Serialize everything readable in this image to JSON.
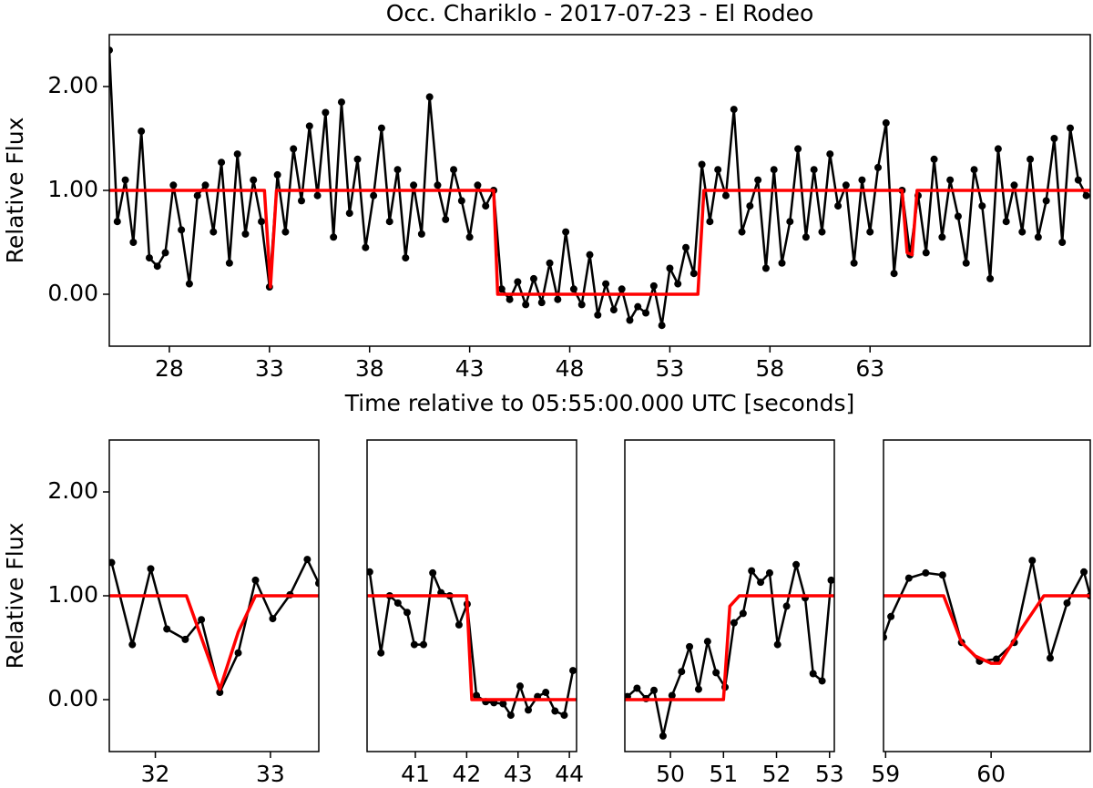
{
  "chart_data": [
    {
      "type": "line",
      "title": "Occ. Chariklo - 2017-07-23 - El Rodeo",
      "xlabel": "Time relative to 05:55:00.000 UTC [seconds]",
      "ylabel": "Relative Flux",
      "xlim": [
        25,
        74
      ],
      "ylim": [
        -0.5,
        2.5
      ],
      "xticks": [
        28,
        33,
        38,
        43,
        48,
        53,
        58,
        63
      ],
      "yticks": [
        {
          "value": 0,
          "label": "0.00"
        },
        {
          "value": 1,
          "label": "1.00"
        },
        {
          "value": 2,
          "label": "2.00"
        }
      ],
      "series": [
        {
          "color": "#000000",
          "markers": true,
          "x": [
            25.0,
            25.4,
            25.8,
            26.2,
            26.6,
            27.0,
            27.4,
            27.8,
            28.2,
            28.6,
            29.0,
            29.4,
            29.8,
            30.2,
            30.6,
            31.0,
            31.4,
            31.8,
            32.2,
            32.6,
            33.0,
            33.4,
            33.8,
            34.2,
            34.6,
            35.0,
            35.4,
            35.8,
            36.2,
            36.6,
            37.0,
            37.4,
            37.8,
            38.2,
            38.6,
            39.0,
            39.4,
            39.8,
            40.2,
            40.6,
            41.0,
            41.4,
            41.8,
            42.2,
            42.6,
            43.0,
            43.4,
            43.8,
            44.2,
            44.6,
            45.0,
            45.4,
            45.8,
            46.2,
            46.6,
            47.0,
            47.4,
            47.8,
            48.2,
            48.6,
            49.0,
            49.4,
            49.8,
            50.2,
            50.6,
            51.0,
            51.4,
            51.8,
            52.2,
            52.6,
            53.0,
            53.4,
            53.8,
            54.2,
            54.6,
            55.0,
            55.4,
            55.8,
            56.2,
            56.6,
            57.0,
            57.4,
            57.8,
            58.2,
            58.6,
            59.0,
            59.4,
            59.8,
            60.2,
            60.6,
            61.0,
            61.4,
            61.8,
            62.2,
            62.6,
            63.0,
            63.4,
            63.8,
            64.2,
            64.6,
            65.0,
            65.4,
            65.8,
            66.2,
            66.6,
            67.0,
            67.4,
            67.8,
            68.2,
            68.6,
            69.0,
            69.4,
            69.8,
            70.2,
            70.6,
            71.0,
            71.4,
            71.8,
            72.2,
            72.6,
            73.0,
            73.4,
            73.8
          ],
          "values": [
            2.35,
            0.7,
            1.1,
            0.5,
            1.57,
            0.35,
            0.27,
            0.4,
            1.05,
            0.62,
            0.1,
            0.95,
            1.05,
            0.6,
            1.27,
            0.3,
            1.35,
            0.58,
            1.1,
            0.7,
            0.07,
            1.15,
            0.6,
            1.4,
            0.9,
            1.62,
            0.95,
            1.75,
            0.55,
            1.85,
            0.78,
            1.3,
            0.45,
            0.95,
            1.6,
            0.7,
            1.2,
            0.35,
            1.05,
            0.58,
            1.9,
            1.05,
            0.72,
            1.2,
            0.9,
            0.55,
            1.05,
            0.85,
            1.0,
            0.05,
            -0.05,
            0.12,
            -0.1,
            0.15,
            -0.08,
            0.3,
            -0.05,
            0.6,
            0.05,
            -0.1,
            0.38,
            -0.2,
            0.1,
            -0.15,
            0.05,
            -0.25,
            -0.12,
            -0.18,
            0.08,
            -0.3,
            0.25,
            0.1,
            0.45,
            0.2,
            1.25,
            0.7,
            1.2,
            0.95,
            1.78,
            0.6,
            0.85,
            1.1,
            0.25,
            1.2,
            0.3,
            0.7,
            1.4,
            0.55,
            1.2,
            0.6,
            1.35,
            0.85,
            1.05,
            0.3,
            1.1,
            0.6,
            1.22,
            1.65,
            0.2,
            1.0,
            0.38,
            0.95,
            0.4,
            1.3,
            0.55,
            1.1,
            0.75,
            0.3,
            1.2,
            0.85,
            0.15,
            1.4,
            0.7,
            1.05,
            0.6,
            1.3,
            0.55,
            0.9,
            1.5,
            0.5,
            1.6,
            1.1,
            0.95
          ]
        },
        {
          "color": "#ff0000",
          "markers": false,
          "x": [
            25,
            32.75,
            33.05,
            33.35,
            44.2,
            44.4,
            54.4,
            54.7,
            64.6,
            64.85,
            65.1,
            65.35,
            74
          ],
          "values": [
            1,
            1,
            0.07,
            1,
            1,
            0,
            0,
            1,
            1,
            0.4,
            0.38,
            1,
            1
          ]
        }
      ]
    },
    {
      "type": "line",
      "ylabel": "Relative Flux",
      "xlim": [
        31.6,
        33.42
      ],
      "ylim": [
        -0.5,
        2.5
      ],
      "xticks": [
        32,
        33
      ],
      "yticks": [
        {
          "value": 0,
          "label": "0.00"
        },
        {
          "value": 1,
          "label": "1.00"
        },
        {
          "value": 2,
          "label": "2.00"
        }
      ],
      "series": [
        {
          "color": "#000000",
          "markers": true,
          "x": [
            31.62,
            31.8,
            31.96,
            32.1,
            32.26,
            32.4,
            32.56,
            32.72,
            32.87,
            33.02,
            33.17,
            33.32,
            33.42
          ],
          "values": [
            1.32,
            0.53,
            1.26,
            0.68,
            0.58,
            0.77,
            0.07,
            0.45,
            1.15,
            0.78,
            1.01,
            1.35,
            1.12
          ]
        },
        {
          "color": "#ff0000",
          "markers": false,
          "x": [
            31.6,
            32.27,
            32.56,
            32.72,
            32.87,
            33.42
          ],
          "values": [
            1,
            1,
            0.1,
            0.65,
            1,
            1
          ]
        }
      ]
    },
    {
      "type": "line",
      "xlim": [
        40.06,
        44.14
      ],
      "ylim": [
        -0.5,
        2.5
      ],
      "xticks": [
        41,
        42,
        43,
        44
      ],
      "series": [
        {
          "color": "#000000",
          "markers": true,
          "x": [
            40.11,
            40.33,
            40.5,
            40.66,
            40.84,
            40.98,
            41.16,
            41.34,
            41.5,
            41.67,
            41.85,
            42.01,
            42.19,
            42.37,
            42.53,
            42.71,
            42.86,
            43.04,
            43.2,
            43.38,
            43.54,
            43.72,
            43.9,
            44.07
          ],
          "values": [
            1.23,
            0.45,
            1.0,
            0.93,
            0.84,
            0.53,
            0.53,
            1.22,
            1.03,
            1.0,
            0.72,
            0.92,
            0.04,
            -0.02,
            -0.03,
            -0.04,
            -0.15,
            0.13,
            -0.1,
            0.03,
            0.07,
            -0.11,
            -0.15,
            0.28
          ]
        },
        {
          "color": "#ff0000",
          "markers": false,
          "x": [
            40.06,
            42.0,
            42.1,
            44.14
          ],
          "values": [
            1,
            1,
            0,
            0
          ]
        }
      ]
    },
    {
      "type": "line",
      "xlim": [
        49.14,
        53.09
      ],
      "ylim": [
        -0.5,
        2.5
      ],
      "xticks": [
        50,
        51,
        52,
        53
      ],
      "series": [
        {
          "color": "#000000",
          "markers": true,
          "x": [
            49.19,
            49.37,
            49.54,
            49.69,
            49.86,
            50.03,
            50.21,
            50.36,
            50.53,
            50.7,
            50.86,
            51.03,
            51.2,
            51.37,
            51.53,
            51.7,
            51.87,
            52.02,
            52.19,
            52.37,
            52.54,
            52.69,
            52.86,
            53.03
          ],
          "values": [
            0.03,
            0.11,
            0.01,
            0.09,
            -0.35,
            0.04,
            0.27,
            0.51,
            0.1,
            0.56,
            0.26,
            0.12,
            0.74,
            0.83,
            1.24,
            1.13,
            1.22,
            0.53,
            0.9,
            1.3,
            0.98,
            0.25,
            0.18,
            1.15
          ]
        },
        {
          "color": "#ff0000",
          "markers": false,
          "x": [
            49.14,
            51.0,
            51.12,
            51.3,
            53.09
          ],
          "values": [
            0,
            0,
            0.9,
            1,
            1
          ]
        }
      ]
    },
    {
      "type": "line",
      "xlim": [
        58.98,
        60.94
      ],
      "ylim": [
        -0.5,
        2.5
      ],
      "xticks": [
        59,
        60
      ],
      "series": [
        {
          "color": "#000000",
          "markers": true,
          "x": [
            58.98,
            59.05,
            59.22,
            59.38,
            59.54,
            59.72,
            59.89,
            60.05,
            60.22,
            60.39,
            60.56,
            60.72,
            60.88,
            60.94
          ],
          "values": [
            0.6,
            0.8,
            1.17,
            1.22,
            1.2,
            0.55,
            0.37,
            0.39,
            0.55,
            1.34,
            0.4,
            0.93,
            1.23,
            1.0
          ]
        },
        {
          "color": "#ff0000",
          "markers": false,
          "x": [
            58.98,
            59.55,
            59.72,
            59.85,
            60.0,
            60.08,
            60.3,
            60.5,
            60.94
          ],
          "values": [
            1,
            1,
            0.55,
            0.42,
            0.35,
            0.35,
            0.7,
            1,
            1
          ]
        }
      ]
    }
  ]
}
